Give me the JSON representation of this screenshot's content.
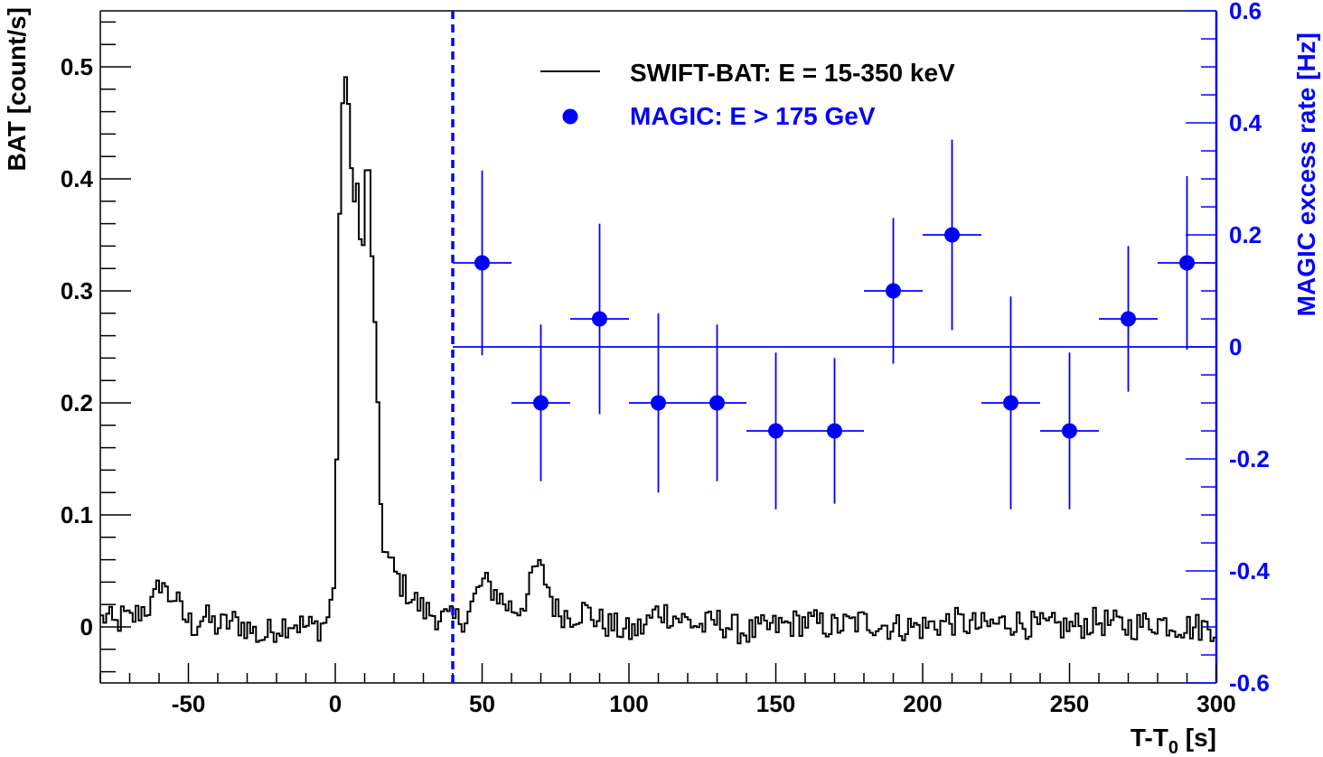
{
  "chart_data": {
    "type": "line",
    "title": "",
    "xlabel": "T-T",
    "xlabel_sub": "0",
    "xlabel_unit": " [s]",
    "ylabel_left": "BAT [count/s]",
    "ylabel_right": "MAGIC excess rate [Hz]",
    "xlim": [
      -80,
      300
    ],
    "ylim_left": [
      -0.05,
      0.55
    ],
    "ylim_right": [
      -0.6,
      0.6
    ],
    "x_ticks": [
      -50,
      0,
      50,
      100,
      150,
      200,
      250,
      300
    ],
    "x_tick_labels": [
      "-50",
      "0",
      "50",
      "100",
      "150",
      "200",
      "250",
      "300"
    ],
    "y_left_ticks": [
      0,
      0.1,
      0.2,
      0.3,
      0.4,
      0.5
    ],
    "y_left_tick_labels": [
      "0",
      "0.1",
      "0.2",
      "0.3",
      "0.4",
      "0.5"
    ],
    "y_right_ticks": [
      -0.6,
      -0.4,
      -0.2,
      0,
      0.2,
      0.4,
      0.6
    ],
    "y_right_tick_labels": [
      "-0.6",
      "-0.4",
      "-0.2",
      "0",
      "0.2",
      "0.4",
      "0.6"
    ],
    "vline_x": 40,
    "hline_right_y": 0,
    "hline_x_range": [
      40,
      300
    ],
    "colors": {
      "bat": "#000000",
      "magic": "#0000ff",
      "axis_right": "#0000ff",
      "frame": "#000000"
    },
    "legend": {
      "placement": "top-right",
      "entries": [
        {
          "label": "SWIFT-BAT: E = 15-350 keV",
          "symbol": "line"
        },
        {
          "label": "MAGIC: E > 175 GeV",
          "symbol": "marker"
        }
      ]
    },
    "bat_anchors": [
      [
        -80,
        0.005
      ],
      [
        -78,
        0.01
      ],
      [
        -75,
        0.0
      ],
      [
        -72,
        0.01
      ],
      [
        -70,
        0.005
      ],
      [
        -66,
        0.015
      ],
      [
        -62,
        0.02
      ],
      [
        -59,
        0.045
      ],
      [
        -57,
        0.025
      ],
      [
        -55,
        0.03
      ],
      [
        -52,
        0.01
      ],
      [
        -48,
        0.0
      ],
      [
        -45,
        0.01
      ],
      [
        -40,
        0.0
      ],
      [
        -35,
        0.005
      ],
      [
        -30,
        0.0
      ],
      [
        -25,
        -0.01
      ],
      [
        -20,
        0.0
      ],
      [
        -15,
        0.005
      ],
      [
        -10,
        0.0
      ],
      [
        -5,
        0.0
      ],
      [
        -2,
        0.01
      ],
      [
        0,
        0.05
      ],
      [
        1,
        0.25
      ],
      [
        2,
        0.45
      ],
      [
        3,
        0.51
      ],
      [
        4,
        0.47
      ],
      [
        5,
        0.43
      ],
      [
        6,
        0.38
      ],
      [
        7,
        0.42
      ],
      [
        8,
        0.36
      ],
      [
        9,
        0.32
      ],
      [
        10,
        0.37
      ],
      [
        11,
        0.42
      ],
      [
        12,
        0.38
      ],
      [
        13,
        0.3
      ],
      [
        14,
        0.22
      ],
      [
        15,
        0.14
      ],
      [
        16,
        0.08
      ],
      [
        18,
        0.06
      ],
      [
        20,
        0.05
      ],
      [
        22,
        0.04
      ],
      [
        25,
        0.03
      ],
      [
        30,
        0.015
      ],
      [
        35,
        0.01
      ],
      [
        40,
        0.005
      ],
      [
        45,
        0.01
      ],
      [
        50,
        0.04
      ],
      [
        53,
        0.035
      ],
      [
        55,
        0.03
      ],
      [
        58,
        0.02
      ],
      [
        62,
        0.015
      ],
      [
        66,
        0.03
      ],
      [
        68,
        0.055
      ],
      [
        70,
        0.05
      ],
      [
        72,
        0.04
      ],
      [
        75,
        0.015
      ],
      [
        80,
        0.01
      ],
      [
        85,
        0.015
      ],
      [
        90,
        0.005
      ],
      [
        95,
        0.0
      ],
      [
        100,
        -0.005
      ],
      [
        105,
        0.0
      ],
      [
        110,
        0.015
      ],
      [
        115,
        0.01
      ],
      [
        120,
        0.005
      ],
      [
        125,
        0.0
      ],
      [
        130,
        0.005
      ],
      [
        135,
        0.0
      ],
      [
        140,
        -0.005
      ],
      [
        150,
        0.0
      ],
      [
        160,
        0.005
      ],
      [
        170,
        0.0
      ],
      [
        180,
        0.005
      ],
      [
        190,
        0.0
      ],
      [
        200,
        0.0
      ],
      [
        210,
        0.005
      ],
      [
        220,
        0.0
      ],
      [
        230,
        0.005
      ],
      [
        240,
        0.0
      ],
      [
        250,
        0.0
      ],
      [
        260,
        0.005
      ],
      [
        270,
        0.0
      ],
      [
        280,
        0.005
      ],
      [
        290,
        0.0
      ],
      [
        300,
        0.0
      ]
    ],
    "bat_noise": 0.013,
    "magic_points": [
      {
        "x": 50,
        "xerr": 10,
        "y": 0.15,
        "yerr": 0.165
      },
      {
        "x": 70,
        "xerr": 10,
        "y": -0.1,
        "yerr": 0.14
      },
      {
        "x": 90,
        "xerr": 10,
        "y": 0.05,
        "yerr": 0.17
      },
      {
        "x": 110,
        "xerr": 10,
        "y": -0.1,
        "yerr": 0.16
      },
      {
        "x": 130,
        "xerr": 10,
        "y": -0.1,
        "yerr": 0.14
      },
      {
        "x": 150,
        "xerr": 10,
        "y": -0.15,
        "yerr": 0.14
      },
      {
        "x": 170,
        "xerr": 10,
        "y": -0.15,
        "yerr": 0.13
      },
      {
        "x": 190,
        "xerr": 10,
        "y": 0.1,
        "yerr": 0.13
      },
      {
        "x": 210,
        "xerr": 10,
        "y": 0.2,
        "yerr": 0.17
      },
      {
        "x": 230,
        "xerr": 10,
        "y": -0.1,
        "yerr": 0.19
      },
      {
        "x": 250,
        "xerr": 10,
        "y": -0.15,
        "yerr": 0.14
      },
      {
        "x": 270,
        "xerr": 10,
        "y": 0.05,
        "yerr": 0.13
      },
      {
        "x": 290,
        "xerr": 10,
        "y": 0.15,
        "yerr": 0.155
      }
    ]
  }
}
